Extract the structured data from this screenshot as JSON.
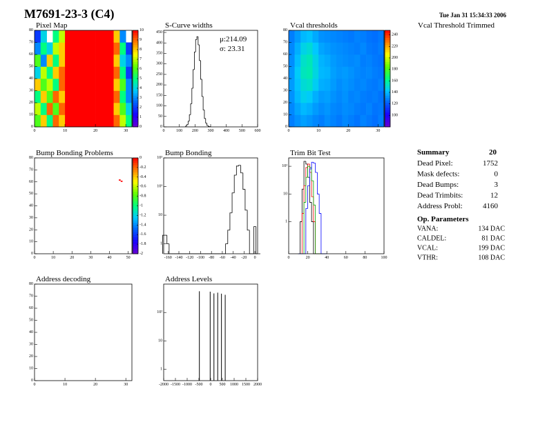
{
  "title": "M7691-23-3 (C4)",
  "date": "Tue Jan 31 15:34:33 2006",
  "subtitle": "Vcal Threshold Trimmed",
  "palette": [
    "#6a00d0",
    "#1a00ff",
    "#0060ff",
    "#00c8ff",
    "#00ff80",
    "#60ff00",
    "#ffff00",
    "#ff8000",
    "#ff0000"
  ],
  "chart_data": [
    {
      "type": "heatmap",
      "title": "Pixel Map",
      "xlim": [
        0,
        32
      ],
      "ylim": [
        0,
        80
      ],
      "xticks": [
        0,
        10,
        20,
        30
      ],
      "yticks": [
        0,
        10,
        20,
        30,
        40,
        50,
        60,
        70,
        80
      ],
      "colorbar": {
        "lim": [
          0,
          10
        ],
        "ticks": [
          0,
          1,
          2,
          3,
          4,
          5,
          6,
          7,
          8,
          9,
          10
        ]
      },
      "z": [
        [
          6,
          8,
          5,
          9,
          8,
          10,
          10,
          10,
          10,
          10,
          10,
          10,
          10,
          9,
          7,
          5
        ],
        [
          7,
          5,
          9,
          6,
          9,
          10,
          10,
          10,
          10,
          10,
          10,
          10,
          10,
          8,
          6,
          4
        ],
        [
          5,
          8,
          6,
          9,
          8,
          10,
          10,
          10,
          10,
          10,
          10,
          10,
          10,
          9,
          5,
          3
        ],
        [
          8,
          6,
          7,
          5,
          9,
          10,
          10,
          10,
          10,
          10,
          10,
          10,
          10,
          8,
          6,
          3
        ],
        [
          4,
          7,
          5,
          8,
          9,
          10,
          10,
          10,
          10,
          10,
          10,
          10,
          10,
          9,
          5,
          2
        ],
        [
          6,
          3,
          8,
          5,
          8,
          10,
          10,
          10,
          10,
          10,
          10,
          10,
          10,
          8,
          4,
          3
        ],
        [
          3,
          5,
          4,
          7,
          8,
          10,
          10,
          10,
          10,
          10,
          10,
          10,
          10,
          9,
          5,
          2
        ],
        [
          2,
          4,
          null,
          5,
          7,
          10,
          10,
          10,
          10,
          10,
          10,
          10,
          10,
          8,
          3,
          null
        ]
      ]
    },
    {
      "type": "histogram",
      "title": "S-Curve widths",
      "xlim": [
        0,
        600
      ],
      "ylim": [
        0,
        460
      ],
      "xticks": [
        0,
        100,
        200,
        300,
        400,
        500,
        600
      ],
      "yticks": [
        0,
        50,
        100,
        150,
        200,
        250,
        300,
        350,
        400,
        450
      ],
      "color": "#000000",
      "annotations": [
        "μ:214.09",
        "σ: 23.31"
      ],
      "bins": [
        140,
        148,
        156,
        164,
        172,
        180,
        188,
        196,
        204,
        212,
        220,
        228,
        236,
        244,
        252,
        260,
        268,
        276,
        284,
        292,
        300
      ],
      "values": [
        4,
        11,
        27,
        58,
        110,
        184,
        273,
        357,
        416,
        430,
        391,
        316,
        227,
        145,
        81,
        40,
        18,
        7,
        2,
        1
      ]
    },
    {
      "type": "heatmap",
      "title": "Vcal thresholds",
      "xlim": [
        0,
        32
      ],
      "ylim": [
        0,
        80
      ],
      "xticks": [
        0,
        10,
        20,
        30
      ],
      "yticks": [
        0,
        10,
        20,
        30,
        40,
        50,
        60,
        70,
        80
      ],
      "colorbar": {
        "lim": [
          80,
          248
        ],
        "ticks": [
          100,
          120,
          140,
          160,
          180,
          200,
          220,
          240
        ]
      },
      "z": [
        [
          128,
          132,
          135,
          133,
          130,
          128,
          131,
          129,
          127,
          130,
          128,
          126,
          129,
          127,
          125,
          128
        ],
        [
          130,
          136,
          140,
          138,
          134,
          131,
          133,
          130,
          129,
          131,
          130,
          128,
          127,
          129,
          126,
          127
        ],
        [
          132,
          140,
          146,
          144,
          138,
          134,
          135,
          132,
          130,
          132,
          129,
          130,
          128,
          127,
          128,
          126
        ],
        [
          134,
          142,
          150,
          152,
          145,
          138,
          137,
          134,
          131,
          133,
          131,
          129,
          130,
          128,
          127,
          129
        ],
        [
          133,
          144,
          154,
          156,
          148,
          140,
          139,
          135,
          133,
          134,
          132,
          130,
          129,
          130,
          128,
          127
        ],
        [
          131,
          141,
          152,
          155,
          147,
          139,
          137,
          134,
          132,
          131,
          130,
          131,
          128,
          129,
          127,
          126
        ],
        [
          130,
          138,
          147,
          150,
          143,
          136,
          134,
          132,
          131,
          130,
          129,
          128,
          130,
          127,
          126,
          128
        ],
        [
          128,
          134,
          140,
          142,
          137,
          132,
          131,
          130,
          129,
          128,
          127,
          129,
          128,
          126,
          125,
          127
        ]
      ]
    },
    {
      "type": "cells",
      "title": "Bump Bonding Problems",
      "xlim": [
        0,
        52
      ],
      "ylim": [
        0,
        80
      ],
      "xticks": [
        0,
        10,
        20,
        30,
        40,
        50
      ],
      "yticks": [
        0,
        10,
        20,
        30,
        40,
        50,
        60,
        70,
        80
      ],
      "colorbar": {
        "lim": [
          -2,
          0
        ],
        "ticks": [
          0,
          -0.2,
          -0.4,
          -0.6,
          -0.8,
          -1,
          -1.2,
          -1.4,
          -1.6,
          -1.8,
          -2
        ]
      },
      "x": [
        45,
        46
      ],
      "y": [
        61,
        60
      ],
      "values": [
        0,
        0
      ]
    },
    {
      "type": "histogram",
      "title": "Bump Bonding",
      "log_y": true,
      "xlim": [
        -168,
        5
      ],
      "ylim": [
        0.45,
        1000
      ],
      "xticks": [
        -160,
        -140,
        -120,
        -100,
        -80,
        -60,
        -40,
        -20,
        0
      ],
      "yticks": [
        1,
        10,
        {
          "value": 100,
          "label": "10²"
        },
        {
          "value": 1000,
          "label": "10³"
        }
      ],
      "color": "#000000",
      "bins": [
        -170,
        -166,
        -162,
        -158,
        -154,
        -150,
        -146,
        -142,
        -138,
        -134,
        -130,
        -126,
        -122,
        -118,
        -114,
        -110,
        -106,
        -102,
        -98,
        -94,
        -90,
        -86,
        -82,
        -78,
        -74,
        -70,
        -66,
        -62,
        -58,
        -54,
        -50,
        -46,
        -42,
        -38,
        -34,
        -30,
        -26,
        -22,
        -18,
        -14,
        -10,
        -6,
        -2,
        2,
        6,
        10
      ],
      "values": [
        2,
        2,
        1,
        0,
        0,
        0,
        0,
        0,
        0,
        0,
        0,
        0,
        0,
        0,
        0,
        0,
        0,
        0,
        0,
        0,
        0,
        0,
        0,
        0,
        0,
        0,
        0,
        0,
        0,
        1,
        3,
        12,
        60,
        250,
        520,
        550,
        300,
        80,
        15,
        3,
        0,
        0,
        4,
        0,
        0
      ]
    },
    {
      "type": "histogram",
      "title": "Trim Bit Test",
      "log_y": true,
      "xlim": [
        0,
        100
      ],
      "ylim": [
        0.07,
        200
      ],
      "xticks": [
        0,
        20,
        40,
        60,
        80,
        100
      ],
      "yticks": [
        1,
        10,
        {
          "value": 100,
          "label": "10²"
        }
      ],
      "bins": [
        10,
        12,
        14,
        16,
        18,
        20,
        22,
        24,
        26,
        28,
        30,
        32,
        34,
        36,
        38,
        40
      ],
      "series": [
        {
          "color": "#000000",
          "values": [
            0,
            1,
            15,
            150,
            120,
            40,
            5,
            1,
            0,
            0,
            0,
            0,
            0,
            0,
            0
          ]
        },
        {
          "color": "#ff0000",
          "values": [
            0,
            0,
            2,
            20,
            90,
            120,
            60,
            8,
            1,
            0,
            0,
            0,
            0,
            0,
            0
          ]
        },
        {
          "color": "#00a000",
          "values": [
            0,
            0,
            0,
            5,
            40,
            100,
            90,
            30,
            4,
            0,
            0,
            0,
            0,
            0,
            0
          ]
        },
        {
          "color": "#0000ff",
          "values": [
            0,
            0,
            0,
            0,
            3,
            20,
            80,
            140,
            130,
            60,
            10,
            2,
            0,
            0,
            0
          ]
        }
      ]
    },
    {
      "type": "heatmap",
      "title": "Address decoding",
      "xlim": [
        0,
        32
      ],
      "ylim": [
        0,
        80
      ],
      "xticks": [
        0,
        10,
        20,
        30
      ],
      "yticks": [
        0,
        10,
        20,
        30,
        40,
        50,
        60,
        70,
        80
      ],
      "z": []
    },
    {
      "type": "stem",
      "title": "Address Levels",
      "log_y": true,
      "xlim": [
        -2000,
        2000
      ],
      "ylim": [
        0.4,
        1000
      ],
      "xticks": [
        -2000,
        -1500,
        -1000,
        -500,
        0,
        500,
        1000,
        1500,
        2000
      ],
      "yticks": [
        1,
        10,
        {
          "value": 100,
          "label": "10²"
        }
      ],
      "color": "#000000",
      "x": [
        -480,
        -20,
        140,
        300,
        460,
        620
      ],
      "values": [
        560,
        540,
        470,
        500,
        460,
        420
      ]
    }
  ],
  "summary": {
    "title": "Summary",
    "count": "20",
    "rows": [
      [
        "Dead Pixel:",
        "1752"
      ],
      [
        "Mask defects:",
        "0"
      ],
      [
        "Dead Bumps:",
        "3"
      ],
      [
        "Dead Trimbits:",
        "12"
      ],
      [
        "Address Probl:",
        "4160"
      ]
    ],
    "op_title": "Op. Parameters",
    "params": [
      [
        "VANA:",
        "134 DAC"
      ],
      [
        "CALDEL:",
        "81 DAC"
      ],
      [
        "VCAL:",
        "199 DAC"
      ],
      [
        "VTHR:",
        "108 DAC"
      ]
    ]
  }
}
